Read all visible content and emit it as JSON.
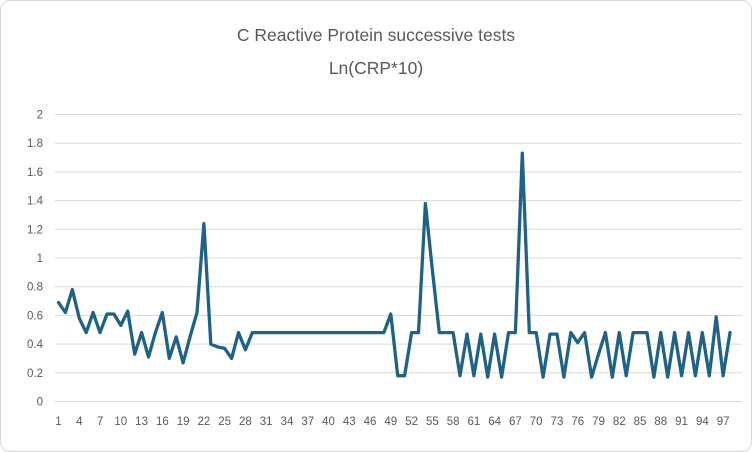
{
  "chart": {
    "title_line1": "C Reactive Protein successive tests",
    "title_line2": "Ln(CRP*10)",
    "colors": {
      "line": "#206285",
      "gridline": "#d9d9d9",
      "tick_text": "#595959",
      "title_text": "#595959",
      "frame_border": "#d6d6d6",
      "background": "#ffffff"
    }
  },
  "chart_data": {
    "type": "line",
    "title": "C Reactive Protein successive tests Ln(CRP*10)",
    "xlabel": "",
    "ylabel": "",
    "ylim": [
      0,
      2
    ],
    "y_ticks": [
      "0",
      "0.2",
      "0.4",
      "0.6",
      "0.8",
      "1",
      "1.2",
      "1.4",
      "1.6",
      "1.8",
      "2"
    ],
    "x_tick_labels": [
      "1",
      "4",
      "7",
      "10",
      "13",
      "16",
      "19",
      "22",
      "25",
      "28",
      "31",
      "34",
      "37",
      "40",
      "43",
      "46",
      "49",
      "52",
      "55",
      "58",
      "61",
      "64",
      "67",
      "70",
      "73",
      "76",
      "79",
      "82",
      "85",
      "88",
      "91",
      "94",
      "97"
    ],
    "grid": true,
    "legend": false,
    "num_points": 98,
    "values": [
      0.69,
      0.62,
      0.78,
      0.58,
      0.48,
      0.62,
      0.48,
      0.61,
      0.61,
      0.53,
      0.63,
      0.33,
      0.48,
      0.31,
      0.48,
      0.62,
      0.3,
      0.45,
      0.27,
      0.45,
      0.62,
      1.24,
      0.4,
      0.38,
      0.37,
      0.3,
      0.48,
      0.36,
      0.48,
      0.48,
      0.48,
      0.48,
      0.48,
      0.48,
      0.48,
      0.48,
      0.48,
      0.48,
      0.48,
      0.48,
      0.48,
      0.48,
      0.48,
      0.48,
      0.48,
      0.48,
      0.48,
      0.48,
      0.61,
      0.18,
      0.18,
      0.48,
      0.48,
      1.38,
      0.92,
      0.48,
      0.48,
      0.48,
      0.18,
      0.47,
      0.18,
      0.47,
      0.17,
      0.47,
      0.17,
      0.48,
      0.48,
      1.73,
      0.48,
      0.48,
      0.17,
      0.47,
      0.47,
      0.17,
      0.48,
      0.41,
      0.48,
      0.17,
      0.33,
      0.48,
      0.17,
      0.48,
      0.18,
      0.48,
      0.48,
      0.48,
      0.17,
      0.48,
      0.17,
      0.48,
      0.18,
      0.48,
      0.18,
      0.48,
      0.18,
      0.59,
      0.18,
      0.48
    ]
  }
}
